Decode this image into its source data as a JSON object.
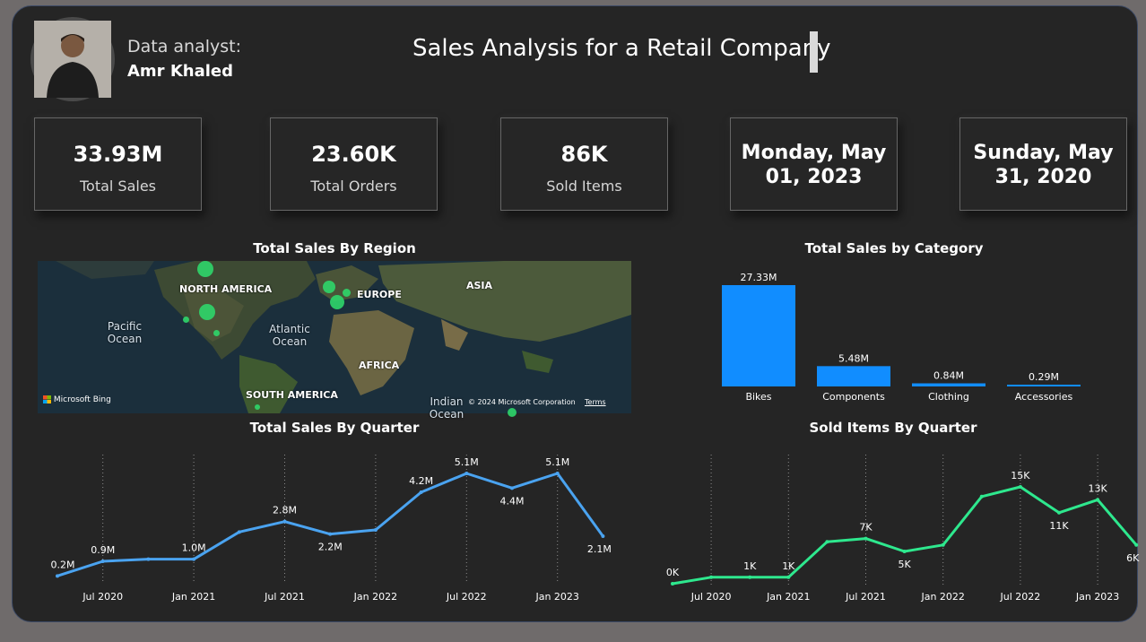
{
  "header": {
    "analyst_label": "Data analyst:",
    "analyst_name": "Amr Khaled",
    "title": "Sales Analysis for a Retail Company"
  },
  "kpis": [
    {
      "value": "33.93M",
      "label": "Total Sales"
    },
    {
      "value": "23.60K",
      "label": "Total Orders"
    },
    {
      "value": "86K",
      "label": "Sold Items"
    },
    {
      "line1": "Monday, May",
      "line2": "01, 2023"
    },
    {
      "line1": "Sunday, May",
      "line2": "31, 2020"
    }
  ],
  "map": {
    "title": "Total Sales By Region",
    "labels": {
      "north_america": "NORTH AMERICA",
      "europe": "EUROPE",
      "asia": "ASIA",
      "africa": "AFRICA",
      "south_america": "SOUTH AMERICA",
      "pacific": "Pacific Ocean",
      "atlantic": "Atlantic Ocean",
      "indian": "Indian Ocean"
    },
    "logo_text": "Microsoft Bing",
    "attribution": "© 2024 Microsoft Corporation",
    "terms": "Terms",
    "marker_color": "#2fd66a"
  },
  "category_chart": {
    "title": "Total Sales by Category",
    "chart_data": {
      "type": "bar",
      "categories": [
        "Bikes",
        "Components",
        "Clothing",
        "Accessories"
      ],
      "values": [
        27.33,
        5.48,
        0.84,
        0.29
      ],
      "labels": [
        "27.33M",
        "5.48M",
        "0.84M",
        "0.29M"
      ],
      "unit": "M",
      "color": "#118dff"
    }
  },
  "sales_quarter_chart": {
    "title": "Total Sales By Quarter",
    "chart_data": {
      "type": "line",
      "x": [
        "2020-04-01",
        "2020-07-01",
        "2020-10-01",
        "2021-01-01",
        "2021-04-01",
        "2021-07-01",
        "2021-10-01",
        "2022-01-01",
        "2022-04-01",
        "2022-07-01",
        "2022-10-01",
        "2023-01-01",
        "2023-04-01"
      ],
      "values": [
        0.2,
        0.9,
        1.0,
        1.0,
        2.3,
        2.8,
        2.2,
        2.4,
        4.2,
        5.1,
        4.4,
        5.1,
        2.1
      ],
      "unit": "M",
      "point_labels": {
        "0": "0.2M",
        "1": "0.9M",
        "3": "1.0M",
        "5": "2.8M",
        "6": "2.2M",
        "8": "4.2M",
        "9": "5.1M",
        "10": "4.4M",
        "11": "5.1M",
        "12": "2.1M"
      },
      "tick_labels": [
        "Jul 2020",
        "Jan 2021",
        "Jul 2021",
        "Jan 2022",
        "Jul 2022",
        "Jan 2023"
      ],
      "color": "#4aa3f0"
    }
  },
  "items_quarter_chart": {
    "title": "Sold Items By Quarter",
    "chart_data": {
      "type": "line",
      "x": [
        "2020-04-01",
        "2020-07-01",
        "2020-10-01",
        "2021-01-01",
        "2021-04-01",
        "2021-07-01",
        "2021-10-01",
        "2022-01-01",
        "2022-04-01",
        "2022-07-01",
        "2022-10-01",
        "2023-01-01",
        "2023-04-01"
      ],
      "values": [
        0,
        1,
        1,
        1,
        6.5,
        7,
        5,
        6,
        13.5,
        15,
        11,
        13,
        6
      ],
      "unit": "K",
      "point_labels": {
        "0": "0K",
        "2": "1K",
        "3": "1K",
        "5": "7K",
        "6": "5K",
        "9": "15K",
        "10": "11K",
        "11": "13K",
        "12": "6K"
      },
      "tick_labels": [
        "Jul 2020",
        "Jan 2021",
        "Jul 2021",
        "Jan 2022",
        "Jul 2022",
        "Jan 2023"
      ],
      "color": "#2ee88e"
    }
  }
}
